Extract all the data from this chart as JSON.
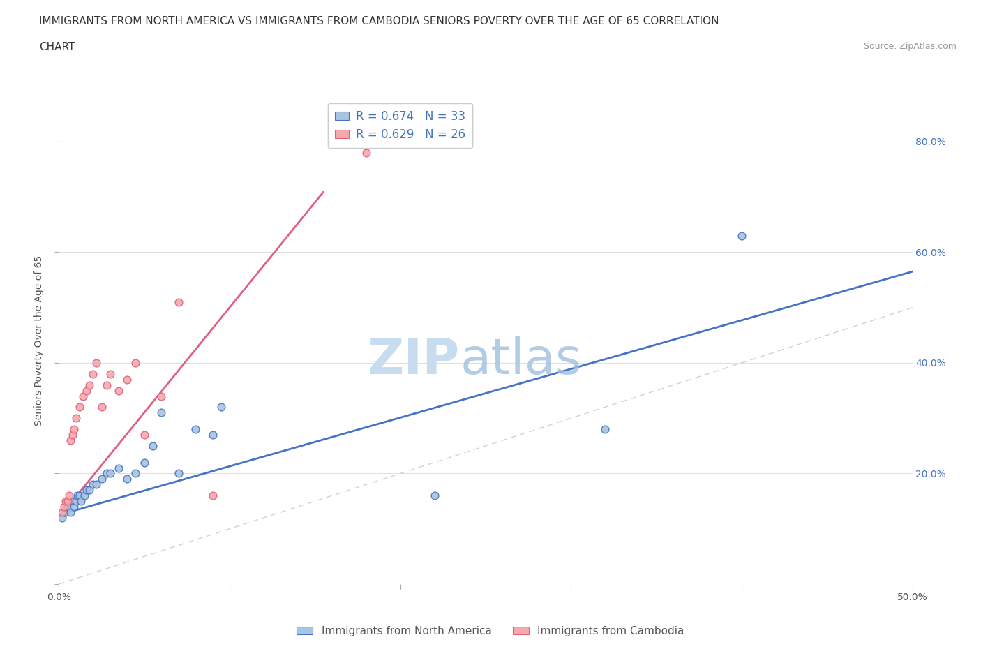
{
  "title_line1": "IMMIGRANTS FROM NORTH AMERICA VS IMMIGRANTS FROM CAMBODIA SENIORS POVERTY OVER THE AGE OF 65 CORRELATION",
  "title_line2": "CHART",
  "source_text": "Source: ZipAtlas.com",
  "ylabel": "Seniors Poverty Over the Age of 65",
  "xlim": [
    0.0,
    0.5
  ],
  "ylim": [
    0.0,
    0.88
  ],
  "xticks": [
    0.0,
    0.1,
    0.2,
    0.3,
    0.4,
    0.5
  ],
  "yticks": [
    0.0,
    0.2,
    0.4,
    0.6,
    0.8
  ],
  "xticklabels": [
    "0.0%",
    "",
    "",
    "",
    "",
    "50.0%"
  ],
  "yticklabels": [
    "",
    "",
    "",
    "",
    ""
  ],
  "right_yticklabels": [
    "",
    "20.0%",
    "40.0%",
    "60.0%",
    "80.0%"
  ],
  "blue_color": "#A8C4E0",
  "pink_color": "#F4AAAA",
  "blue_line_color": "#4472C4",
  "pink_line_color": "#E06080",
  "diag_line_color": "#CCCCCC",
  "legend_blue_label": "R = 0.674   N = 33",
  "legend_pink_label": "R = 0.629   N = 26",
  "legend_bottom_blue": "Immigrants from North America",
  "legend_bottom_pink": "Immigrants from Cambodia",
  "blue_x": [
    0.002,
    0.003,
    0.004,
    0.005,
    0.006,
    0.007,
    0.008,
    0.009,
    0.01,
    0.011,
    0.012,
    0.013,
    0.015,
    0.016,
    0.018,
    0.02,
    0.022,
    0.025,
    0.028,
    0.03,
    0.035,
    0.04,
    0.045,
    0.05,
    0.055,
    0.06,
    0.07,
    0.08,
    0.09,
    0.095,
    0.22,
    0.32,
    0.4
  ],
  "blue_y": [
    0.12,
    0.13,
    0.13,
    0.14,
    0.14,
    0.13,
    0.15,
    0.14,
    0.15,
    0.16,
    0.16,
    0.15,
    0.16,
    0.17,
    0.17,
    0.18,
    0.18,
    0.19,
    0.2,
    0.2,
    0.21,
    0.19,
    0.2,
    0.22,
    0.25,
    0.31,
    0.2,
    0.28,
    0.27,
    0.32,
    0.16,
    0.28,
    0.63
  ],
  "pink_x": [
    0.002,
    0.003,
    0.004,
    0.005,
    0.006,
    0.007,
    0.008,
    0.009,
    0.01,
    0.012,
    0.014,
    0.016,
    0.018,
    0.02,
    0.022,
    0.025,
    0.028,
    0.03,
    0.035,
    0.04,
    0.045,
    0.05,
    0.06,
    0.07,
    0.09,
    0.18
  ],
  "pink_y": [
    0.13,
    0.14,
    0.15,
    0.15,
    0.16,
    0.26,
    0.27,
    0.28,
    0.3,
    0.32,
    0.34,
    0.35,
    0.36,
    0.38,
    0.4,
    0.32,
    0.36,
    0.38,
    0.35,
    0.37,
    0.4,
    0.27,
    0.34,
    0.51,
    0.16,
    0.78
  ],
  "blue_slope": 0.88,
  "blue_intercept": 0.125,
  "pink_slope": 3.8,
  "pink_intercept": 0.12,
  "pink_line_xmax": 0.155,
  "background_color": "#FFFFFF",
  "grid_color": "#E0E0E0"
}
